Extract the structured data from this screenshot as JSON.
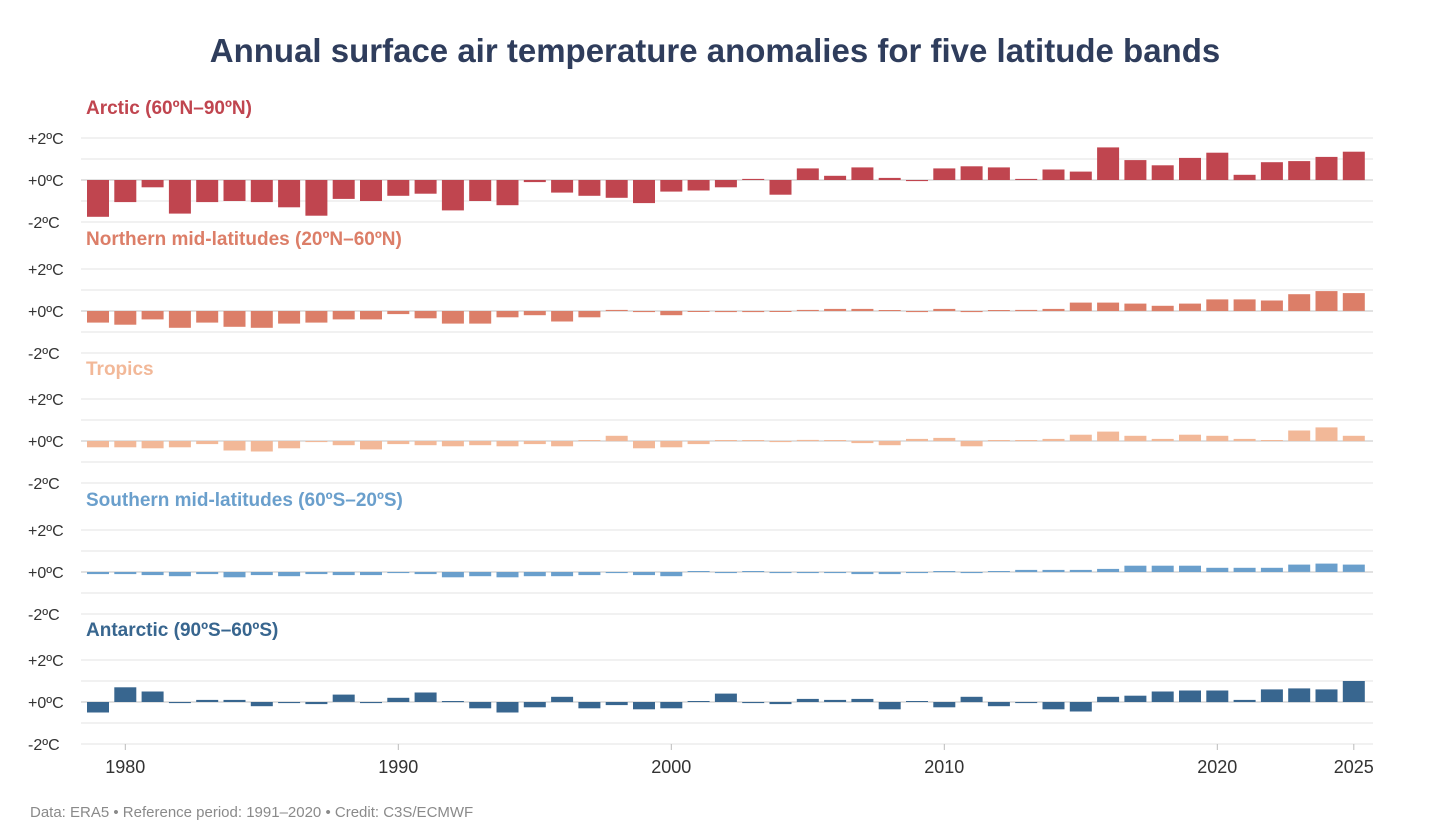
{
  "chart_data": {
    "type": "bar",
    "title": "Annual surface air temperature anomalies for five latitude bands",
    "credit": "Data: ERA5 • Reference period: 1991–2020 • Credit: C3S/ECMWF",
    "years": [
      1979,
      1980,
      1981,
      1982,
      1983,
      1984,
      1985,
      1986,
      1987,
      1988,
      1989,
      1990,
      1991,
      1992,
      1993,
      1994,
      1995,
      1996,
      1997,
      1998,
      1999,
      2000,
      2001,
      2002,
      2003,
      2004,
      2005,
      2006,
      2007,
      2008,
      2009,
      2010,
      2011,
      2012,
      2013,
      2014,
      2015,
      2016,
      2017,
      2018,
      2019,
      2020,
      2021,
      2022,
      2023,
      2024,
      2025
    ],
    "x_ticks": [
      "1980",
      "1990",
      "2000",
      "2010",
      "2020",
      "2025"
    ],
    "x_tick_years": [
      1980,
      1990,
      2000,
      2010,
      2020,
      2025
    ],
    "y_ticks": [
      "+2ºC",
      "+0ºC",
      "-2ºC"
    ],
    "y_tick_values": [
      2,
      0,
      -2
    ],
    "ylim": [
      -2.1,
      2.1
    ],
    "series": [
      {
        "name": "Arctic (60ºN–90ºN)",
        "color": "#c0454f",
        "values": [
          -1.75,
          -1.05,
          -0.35,
          -1.6,
          -1.05,
          -1.0,
          -1.05,
          -1.3,
          -1.7,
          -0.9,
          -1.0,
          -0.75,
          -0.65,
          -1.45,
          -1.0,
          -1.2,
          -0.1,
          -0.6,
          -0.75,
          -0.85,
          -1.1,
          -0.55,
          -0.5,
          -0.35,
          0.05,
          -0.7,
          0.55,
          0.2,
          0.6,
          0.1,
          -0.05,
          0.55,
          0.65,
          0.6,
          0.05,
          0.5,
          0.4,
          1.55,
          0.95,
          0.7,
          1.05,
          1.3,
          0.25,
          0.85,
          0.9,
          1.1,
          1.35
        ]
      },
      {
        "name": "Northern mid-latitudes (20ºN–60ºN)",
        "color": "#dc7e68",
        "values": [
          -0.55,
          -0.65,
          -0.4,
          -0.8,
          -0.55,
          -0.75,
          -0.8,
          -0.6,
          -0.55,
          -0.4,
          -0.4,
          -0.15,
          -0.35,
          -0.6,
          -0.6,
          -0.3,
          -0.2,
          -0.5,
          -0.3,
          0.05,
          -0.05,
          -0.2,
          -0.02,
          -0.05,
          -0.05,
          -0.02,
          0.05,
          0.1,
          0.1,
          0.02,
          -0.05,
          0.1,
          -0.05,
          0.02,
          0.05,
          0.1,
          0.4,
          0.4,
          0.35,
          0.25,
          0.35,
          0.55,
          0.55,
          0.5,
          0.8,
          0.95,
          0.85
        ]
      },
      {
        "name": "Tropics",
        "color": "#f2b898",
        "values": [
          -0.3,
          -0.3,
          -0.35,
          -0.3,
          -0.15,
          -0.45,
          -0.5,
          -0.35,
          -0.05,
          -0.2,
          -0.4,
          -0.15,
          -0.2,
          -0.25,
          -0.2,
          -0.25,
          -0.15,
          -0.25,
          0.0,
          0.25,
          -0.35,
          -0.3,
          -0.15,
          0.02,
          0.02,
          -0.05,
          0.05,
          0.0,
          -0.1,
          -0.2,
          0.1,
          0.15,
          -0.25,
          0.0,
          0.02,
          0.1,
          0.3,
          0.45,
          0.25,
          0.1,
          0.3,
          0.25,
          0.1,
          0.0,
          0.5,
          0.65,
          0.25
        ]
      },
      {
        "name": "Southern mid-latitudes (60ºS–20ºS)",
        "color": "#6a9fcc",
        "values": [
          -0.1,
          -0.1,
          -0.15,
          -0.2,
          -0.1,
          -0.25,
          -0.15,
          -0.2,
          -0.1,
          -0.15,
          -0.15,
          -0.05,
          -0.1,
          -0.25,
          -0.2,
          -0.25,
          -0.2,
          -0.2,
          -0.15,
          -0.05,
          -0.15,
          -0.2,
          0.0,
          -0.05,
          0.0,
          -0.05,
          -0.05,
          -0.05,
          -0.1,
          -0.1,
          -0.05,
          0.05,
          -0.05,
          0.0,
          0.1,
          0.1,
          0.1,
          0.15,
          0.3,
          0.3,
          0.3,
          0.2,
          0.2,
          0.2,
          0.35,
          0.4,
          0.35
        ]
      },
      {
        "name": "Antarctic (90ºS–60ºS)",
        "color": "#38668f",
        "values": [
          -0.5,
          0.7,
          0.5,
          -0.05,
          0.1,
          0.1,
          -0.2,
          -0.05,
          -0.1,
          0.35,
          -0.05,
          0.2,
          0.45,
          0.05,
          -0.3,
          -0.5,
          -0.25,
          0.25,
          -0.3,
          -0.15,
          -0.35,
          -0.3,
          0.0,
          0.4,
          -0.05,
          -0.1,
          0.15,
          0.1,
          0.15,
          -0.35,
          0.0,
          -0.25,
          0.25,
          -0.2,
          -0.05,
          -0.35,
          -0.45,
          0.25,
          0.3,
          0.5,
          0.55,
          0.55,
          0.1,
          0.6,
          0.65,
          0.6,
          1.0
        ]
      }
    ]
  }
}
